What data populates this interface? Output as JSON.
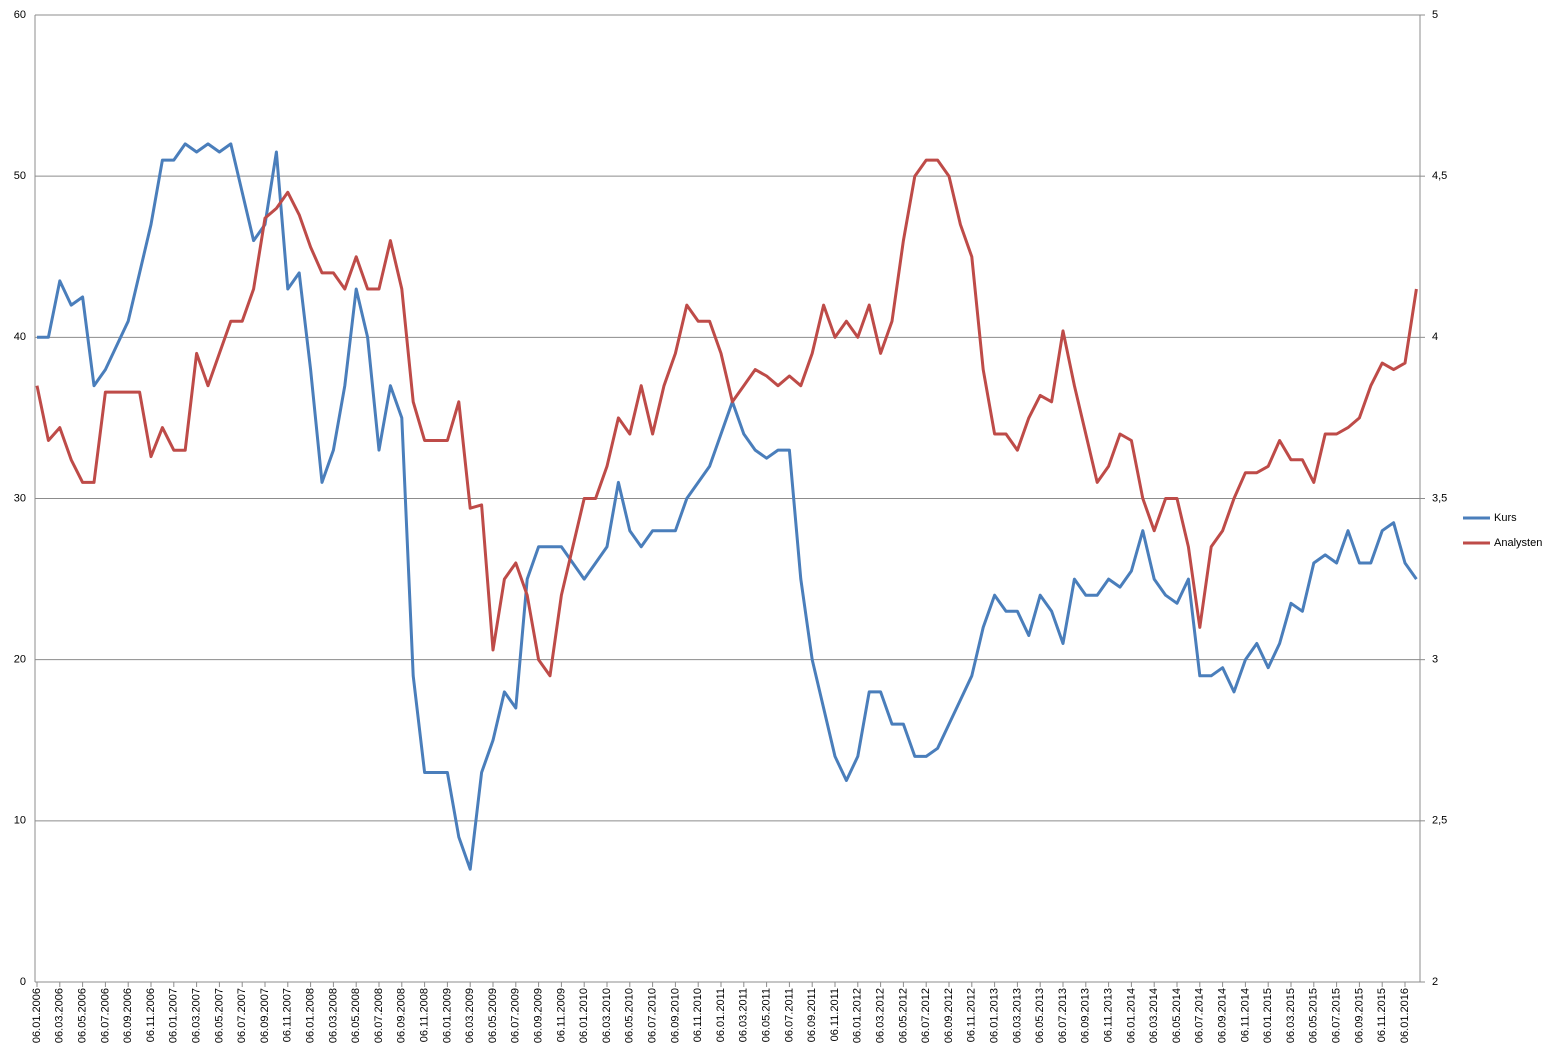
{
  "chart_data": {
    "type": "line",
    "categories": [
      "06.01.2006",
      null,
      "06.03.2006",
      null,
      "06.05.2006",
      null,
      "06.07.2006",
      null,
      "06.09.2006",
      null,
      "06.11.2006",
      null,
      "06.01.2007",
      null,
      "06.03.2007",
      null,
      "06.05.2007",
      null,
      "06.07.2007",
      null,
      "06.09.2007",
      null,
      "06.11.2007",
      null,
      "06.01.2008",
      null,
      "06.03.2008",
      null,
      "06.05.2008",
      null,
      "06.07.2008",
      null,
      "06.09.2008",
      null,
      "06.11.2008",
      null,
      "06.01.2009",
      null,
      "06.03.2009",
      null,
      "06.05.2009",
      null,
      "06.07.2009",
      null,
      "06.09.2009",
      null,
      "06.11.2009",
      null,
      "06.01.2010",
      null,
      "06.03.2010",
      null,
      "06.05.2010",
      null,
      "06.07.2010",
      null,
      "06.09.2010",
      null,
      "06.11.2010",
      null,
      "06.01.2011",
      null,
      "06.03.2011",
      null,
      "06.05.2011",
      null,
      "06.07.2011",
      null,
      "06.09.2011",
      null,
      "06.11.2011",
      null,
      "06.01.2012",
      null,
      "06.03.2012",
      null,
      "06.05.2012",
      null,
      "06.07.2012",
      null,
      "06.09.2012",
      null,
      "06.11.2012",
      null,
      "06.01.2013",
      null,
      "06.03.2013",
      null,
      "06.05.2013",
      null,
      "06.07.2013",
      null,
      "06.09.2013",
      null,
      "06.11.2013",
      null,
      "06.01.2014",
      null,
      "06.03.2014",
      null,
      "06.05.2014",
      null,
      "06.07.2014",
      null,
      "06.09.2014",
      null,
      "06.11.2014",
      null,
      "06.01.2015",
      null,
      "06.03.2015",
      null,
      "06.05.2015",
      null,
      "06.07.2015",
      null,
      "06.09.2015",
      null,
      "06.11.2015",
      null,
      "06.01.2016",
      null
    ],
    "series": [
      {
        "name": "Kurs",
        "color": "#4a7ebb",
        "values": [
          40,
          40,
          43.5,
          42,
          42.5,
          37,
          38,
          39.5,
          41,
          44,
          47,
          51,
          51,
          52,
          51.5,
          52,
          51.5,
          52,
          49,
          46,
          47,
          51.5,
          43,
          44,
          38,
          31,
          33,
          37,
          43,
          40,
          33,
          37,
          35,
          19,
          13,
          13,
          13,
          9,
          7,
          13,
          15,
          18,
          17,
          25,
          27,
          27,
          27,
          26,
          25,
          26,
          27,
          31,
          28,
          27,
          28,
          28,
          28,
          30,
          31,
          32,
          34,
          36,
          34,
          33,
          32.5,
          33,
          33,
          25,
          20,
          17,
          14,
          12.5,
          14,
          18,
          18,
          16,
          16,
          14,
          14,
          14.5,
          16,
          17.5,
          19,
          22,
          24,
          23,
          23,
          21.5,
          24,
          23,
          21,
          25,
          24,
          24,
          25,
          24.5,
          25.5,
          28,
          25,
          24,
          23.5,
          25,
          19,
          19,
          19.5,
          18,
          20,
          21,
          19.5,
          21,
          23.5,
          23,
          26,
          26.5,
          26,
          28,
          26,
          26,
          28,
          28.5,
          26,
          25
        ]
      },
      {
        "name": "Analysten",
        "color": "#be4b48",
        "axis": "y2",
        "values": [
          3.85,
          3.68,
          3.72,
          3.62,
          3.55,
          3.55,
          3.83,
          3.83,
          3.83,
          3.83,
          3.63,
          3.72,
          3.65,
          3.65,
          3.95,
          3.85,
          3.95,
          4.05,
          4.05,
          4.15,
          4.37,
          4.4,
          4.45,
          4.38,
          4.28,
          4.2,
          4.2,
          4.15,
          4.25,
          4.15,
          4.15,
          4.3,
          4.15,
          3.8,
          3.68,
          3.68,
          3.68,
          3.8,
          3.47,
          3.48,
          3.03,
          3.25,
          3.3,
          3.2,
          3.0,
          2.95,
          3.2,
          3.35,
          3.5,
          3.5,
          3.6,
          3.75,
          3.7,
          3.85,
          3.7,
          3.85,
          3.95,
          4.1,
          4.05,
          4.05,
          3.95,
          3.8,
          3.85,
          3.9,
          3.88,
          3.85,
          3.88,
          3.85,
          3.95,
          4.1,
          4.0,
          4.05,
          4.0,
          4.1,
          3.95,
          4.05,
          4.3,
          4.5,
          4.55,
          4.55,
          4.5,
          4.35,
          4.25,
          3.9,
          3.7,
          3.7,
          3.65,
          3.75,
          3.82,
          3.8,
          4.02,
          3.85,
          3.7,
          3.55,
          3.6,
          3.7,
          3.68,
          3.5,
          3.4,
          3.5,
          3.5,
          3.35,
          3.1,
          3.35,
          3.4,
          3.5,
          3.58,
          3.58,
          3.6,
          3.68,
          3.62,
          3.62,
          3.55,
          3.7,
          3.7,
          3.72,
          3.75,
          3.85,
          3.92,
          3.9,
          3.92,
          4.15
        ]
      }
    ],
    "ylim": [
      0,
      60
    ],
    "yticks": [
      0,
      10,
      20,
      30,
      40,
      50,
      60
    ],
    "y2lim": [
      2,
      5
    ],
    "y2ticks": [
      2,
      {
        "value": 2.5,
        "label": "2,5"
      },
      3,
      {
        "value": 3.5,
        "label": "3,5"
      },
      4,
      {
        "value": 4.5,
        "label": "4,5"
      },
      5
    ],
    "grid": true,
    "legend": "right"
  }
}
